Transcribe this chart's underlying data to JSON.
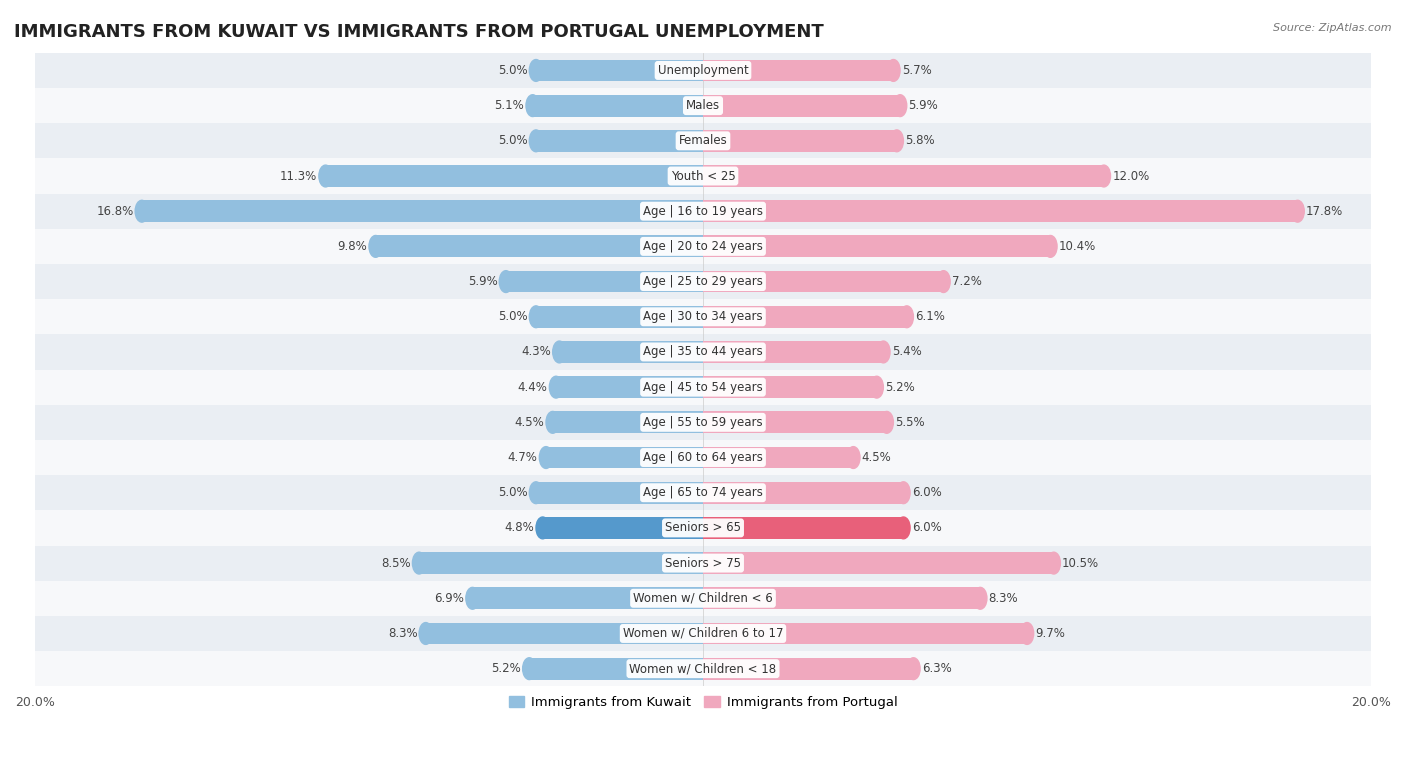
{
  "title": "IMMIGRANTS FROM KUWAIT VS IMMIGRANTS FROM PORTUGAL UNEMPLOYMENT",
  "source": "Source: ZipAtlas.com",
  "categories": [
    "Unemployment",
    "Males",
    "Females",
    "Youth < 25",
    "Age | 16 to 19 years",
    "Age | 20 to 24 years",
    "Age | 25 to 29 years",
    "Age | 30 to 34 years",
    "Age | 35 to 44 years",
    "Age | 45 to 54 years",
    "Age | 55 to 59 years",
    "Age | 60 to 64 years",
    "Age | 65 to 74 years",
    "Seniors > 65",
    "Seniors > 75",
    "Women w/ Children < 6",
    "Women w/ Children 6 to 17",
    "Women w/ Children < 18"
  ],
  "kuwait_values": [
    5.0,
    5.1,
    5.0,
    11.3,
    16.8,
    9.8,
    5.9,
    5.0,
    4.3,
    4.4,
    4.5,
    4.7,
    5.0,
    4.8,
    8.5,
    6.9,
    8.3,
    5.2
  ],
  "portugal_values": [
    5.7,
    5.9,
    5.8,
    12.0,
    17.8,
    10.4,
    7.2,
    6.1,
    5.4,
    5.2,
    5.5,
    4.5,
    6.0,
    6.0,
    10.5,
    8.3,
    9.7,
    6.3
  ],
  "kuwait_color": "#92bfdf",
  "portugal_color": "#f0a8be",
  "kuwait_highlight_color": "#5599cc",
  "portugal_highlight_color": "#e8607a",
  "highlight_row": 4,
  "bar_height": 0.62,
  "bg_color_odd": "#eaeef3",
  "bg_color_even": "#f7f8fa",
  "axis_limit": 20.0,
  "title_fontsize": 13,
  "label_fontsize": 8.5,
  "value_fontsize": 8.5,
  "legend_fontsize": 9.5
}
